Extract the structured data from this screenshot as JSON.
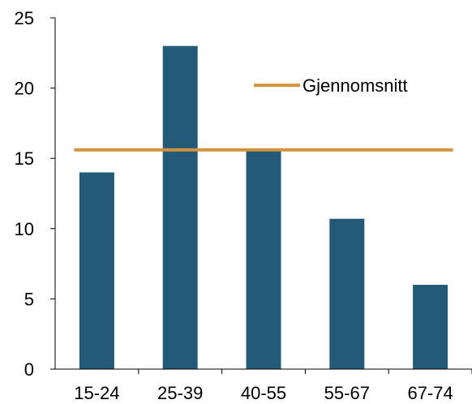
{
  "chart_data": {
    "type": "bar",
    "categories": [
      "15-24",
      "25-39",
      "40-55",
      "55-67",
      "67-74"
    ],
    "values": [
      14.0,
      23.0,
      15.6,
      10.7,
      6.0
    ],
    "series": [
      {
        "name": "",
        "values": [
          14.0,
          23.0,
          15.6,
          10.7,
          6.0
        ]
      },
      {
        "name": "Gjennomsnitt",
        "type": "line",
        "value": 15.6
      }
    ],
    "title": "",
    "xlabel": "",
    "ylabel": "",
    "ylim": [
      0,
      25
    ],
    "yticks": [
      0,
      5,
      10,
      15,
      20,
      25
    ],
    "grid": false,
    "legend": {
      "entries": [
        "Gjennomsnitt"
      ],
      "placement": "top-right"
    },
    "colors": {
      "bar": "#235A78",
      "line": "#D4913E",
      "axis": "#000000"
    }
  }
}
